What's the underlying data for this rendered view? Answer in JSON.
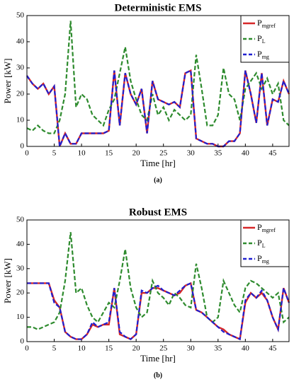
{
  "chart_data": [
    {
      "type": "line",
      "title": "Deterministic EMS",
      "xlabel": "Time [hr]",
      "ylabel": "Power [kW]",
      "caption": "(a)",
      "x": [
        0,
        1,
        2,
        3,
        4,
        5,
        6,
        7,
        8,
        9,
        10,
        11,
        12,
        13,
        14,
        15,
        16,
        17,
        18,
        19,
        20,
        21,
        22,
        23,
        24,
        25,
        26,
        27,
        28,
        29,
        30,
        31,
        32,
        33,
        34,
        35,
        36,
        37,
        38,
        39,
        40,
        41,
        42,
        43,
        44,
        45,
        46,
        47,
        48
      ],
      "xlim": [
        0,
        48
      ],
      "xticks": [
        0,
        5,
        10,
        15,
        20,
        25,
        30,
        35,
        40,
        45
      ],
      "ylim": [
        0,
        50
      ],
      "yticks": [
        0,
        10,
        20,
        30,
        40,
        50
      ],
      "legend": "upper right",
      "series": [
        {
          "name": "P",
          "subscript": "mgref",
          "color": "#d62728",
          "style": "solid",
          "values": [
            27,
            24,
            22,
            24,
            20,
            23,
            0,
            5,
            1,
            1,
            5,
            5,
            5,
            5,
            5,
            6,
            29,
            8,
            28,
            20,
            16,
            22,
            5,
            25,
            18,
            17,
            16,
            17,
            15,
            28,
            29,
            3,
            2,
            1,
            1,
            0,
            0,
            2,
            2,
            5,
            29,
            20,
            9,
            28,
            8,
            18,
            17,
            25,
            20
          ]
        },
        {
          "name": "P",
          "subscript": "L",
          "color": "#2e8b2e",
          "style": "dashed",
          "values": [
            7,
            6,
            8,
            6,
            5,
            5,
            10,
            20,
            48,
            15,
            20,
            18,
            12,
            10,
            8,
            14,
            18,
            28,
            38,
            25,
            18,
            12,
            10,
            20,
            12,
            15,
            10,
            14,
            12,
            10,
            12,
            35,
            22,
            8,
            8,
            12,
            30,
            20,
            18,
            10,
            22,
            25,
            28,
            22,
            26,
            20,
            24,
            10,
            8
          ]
        },
        {
          "name": "P",
          "subscript": "mg",
          "color": "#1f1fd0",
          "style": "dashed",
          "values": [
            27,
            24,
            22,
            24,
            20,
            23,
            0,
            5,
            1,
            1,
            5,
            5,
            5,
            5,
            5,
            6,
            29,
            8,
            28,
            20,
            16,
            22,
            5,
            25,
            18,
            17,
            16,
            17,
            15,
            28,
            29,
            3,
            2,
            1,
            1,
            0,
            0,
            2,
            2,
            5,
            29,
            20,
            9,
            28,
            8,
            18,
            17,
            25,
            20
          ]
        }
      ]
    },
    {
      "type": "line",
      "title": "Robust EMS",
      "xlabel": "Time [hr]",
      "ylabel": "Power [kW]",
      "caption": "(b)",
      "x": [
        0,
        1,
        2,
        3,
        4,
        5,
        6,
        7,
        8,
        9,
        10,
        11,
        12,
        13,
        14,
        15,
        16,
        17,
        18,
        19,
        20,
        21,
        22,
        23,
        24,
        25,
        26,
        27,
        28,
        29,
        30,
        31,
        32,
        33,
        34,
        35,
        36,
        37,
        38,
        39,
        40,
        41,
        42,
        43,
        44,
        45,
        46,
        47,
        48
      ],
      "xlim": [
        0,
        48
      ],
      "xticks": [
        0,
        5,
        10,
        15,
        20,
        25,
        30,
        35,
        40,
        45
      ],
      "ylim": [
        0,
        50
      ],
      "yticks": [
        0,
        10,
        20,
        30,
        40,
        50
      ],
      "legend": "upper right",
      "series": [
        {
          "name": "P",
          "subscript": "mgref",
          "color": "#d62728",
          "style": "solid",
          "values": [
            24,
            24,
            24,
            24,
            24,
            17,
            14,
            4,
            2,
            1,
            1,
            3,
            7,
            6,
            7,
            7,
            22,
            3,
            2,
            1,
            3,
            20,
            20,
            22,
            22,
            21,
            20,
            19,
            20,
            23,
            24,
            13,
            12,
            10,
            8,
            6,
            5,
            3,
            2,
            1,
            16,
            20,
            18,
            20,
            17,
            10,
            5,
            22,
            16
          ]
        },
        {
          "name": "P",
          "subscript": "L",
          "color": "#2e8b2e",
          "style": "dashed",
          "values": [
            6,
            6,
            5,
            6,
            7,
            8,
            12,
            25,
            45,
            20,
            22,
            15,
            10,
            8,
            12,
            16,
            14,
            25,
            38,
            22,
            14,
            10,
            12,
            25,
            20,
            18,
            15,
            20,
            18,
            15,
            14,
            32,
            22,
            10,
            8,
            10,
            25,
            20,
            15,
            12,
            22,
            25,
            24,
            22,
            20,
            18,
            20,
            8,
            10
          ]
        },
        {
          "name": "P",
          "subscript": "mg",
          "color": "#1f1fd0",
          "style": "dashed",
          "values": [
            24,
            24,
            24,
            24,
            24,
            16,
            14,
            4,
            2,
            1,
            1,
            3,
            8,
            6,
            7,
            8,
            22,
            4,
            2,
            1,
            3,
            21,
            20,
            22,
            23,
            21,
            20,
            19,
            21,
            23,
            24,
            13,
            12,
            10,
            8,
            6,
            4,
            3,
            2,
            1,
            17,
            20,
            18,
            21,
            17,
            10,
            5,
            22,
            16
          ]
        }
      ]
    }
  ]
}
